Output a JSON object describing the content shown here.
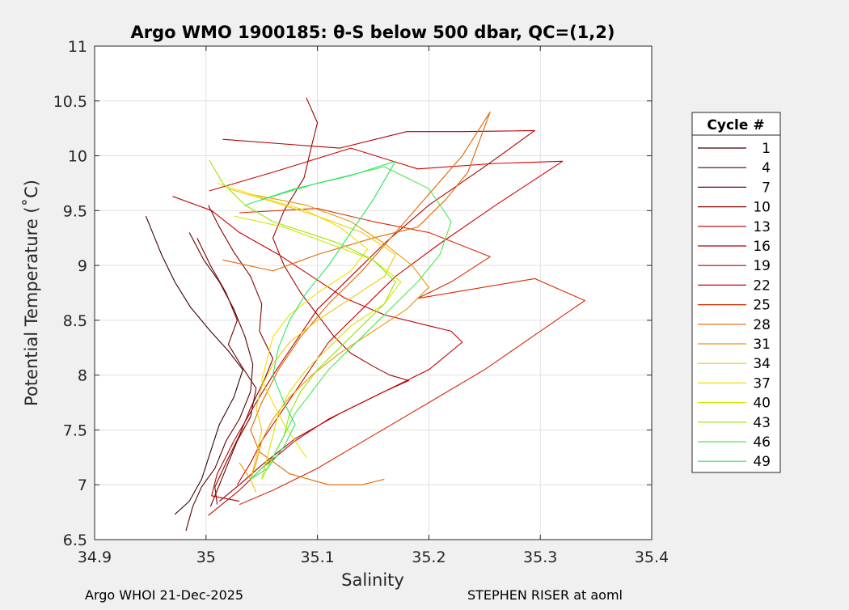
{
  "chart_data": {
    "type": "line",
    "title": "Argo WMO 1900185: θ-S below 500 dbar,  QC=(1,2)",
    "xlabel": "Salinity",
    "ylabel": "Potential Temperature (˚C)",
    "xlim": [
      34.9,
      35.4
    ],
    "ylim": [
      6.5,
      11
    ],
    "xticks": [
      34.9,
      35,
      35.1,
      35.2,
      35.3,
      35.4
    ],
    "xtick_labels": [
      "34.9",
      "35",
      "35.1",
      "35.2",
      "35.3",
      "35.4"
    ],
    "yticks": [
      6.5,
      7,
      7.5,
      8,
      8.5,
      9,
      9.5,
      10,
      10.5,
      11
    ],
    "ytick_labels": [
      "6.5",
      "7",
      "7.5",
      "8",
      "8.5",
      "9",
      "9.5",
      "10",
      "10.5",
      "11"
    ],
    "grid": true,
    "legend": {
      "title": "Cycle #",
      "position": "right"
    },
    "series": [
      {
        "name": "1",
        "color": "#3c0000",
        "points": [
          [
            34.946,
            9.45
          ],
          [
            34.96,
            9.1
          ],
          [
            34.972,
            8.85
          ],
          [
            34.986,
            8.62
          ],
          [
            35.004,
            8.4
          ],
          [
            35.02,
            8.22
          ],
          [
            35.033,
            8.05
          ],
          [
            35.025,
            7.8
          ],
          [
            35.012,
            7.55
          ],
          [
            35.004,
            7.3
          ],
          [
            34.996,
            7.05
          ],
          [
            34.985,
            6.85
          ],
          [
            34.972,
            6.73
          ]
        ]
      },
      {
        "name": "4",
        "color": "#5a0000",
        "points": [
          [
            34.985,
            9.3
          ],
          [
            34.998,
            9.05
          ],
          [
            35.012,
            8.85
          ],
          [
            35.025,
            8.6
          ],
          [
            35.035,
            8.35
          ],
          [
            35.042,
            8.1
          ],
          [
            35.04,
            7.85
          ],
          [
            35.03,
            7.6
          ],
          [
            35.018,
            7.4
          ],
          [
            35.008,
            7.15
          ],
          [
            34.996,
            6.98
          ],
          [
            34.988,
            6.8
          ],
          [
            34.982,
            6.58
          ]
        ]
      },
      {
        "name": "7",
        "color": "#720000",
        "points": [
          [
            34.992,
            9.25
          ],
          [
            35.004,
            9.0
          ],
          [
            35.018,
            8.75
          ],
          [
            35.028,
            8.5
          ],
          [
            35.02,
            8.28
          ],
          [
            35.032,
            8.08
          ],
          [
            35.045,
            7.88
          ],
          [
            35.04,
            7.62
          ],
          [
            35.028,
            7.4
          ],
          [
            35.018,
            7.15
          ],
          [
            35.01,
            6.95
          ],
          [
            35.004,
            6.8
          ]
        ]
      },
      {
        "name": "10",
        "color": "#8a0000",
        "points": [
          [
            35.002,
            9.55
          ],
          [
            35.012,
            9.35
          ],
          [
            35.025,
            9.12
          ],
          [
            35.04,
            8.9
          ],
          [
            35.05,
            8.65
          ],
          [
            35.048,
            8.4
          ],
          [
            35.06,
            8.15
          ],
          [
            35.052,
            7.95
          ],
          [
            35.04,
            7.7
          ],
          [
            35.03,
            7.45
          ],
          [
            35.018,
            7.2
          ],
          [
            35.008,
            6.98
          ],
          [
            35.01,
            6.82
          ]
        ]
      },
      {
        "name": "13",
        "color": "#a00000",
        "points": [
          [
            35.09,
            10.53
          ],
          [
            35.1,
            10.3
          ],
          [
            35.095,
            10.1
          ],
          [
            35.088,
            9.8
          ],
          [
            35.07,
            9.5
          ],
          [
            35.06,
            9.25
          ],
          [
            35.07,
            9.0
          ],
          [
            35.085,
            8.75
          ],
          [
            35.1,
            8.55
          ],
          [
            35.115,
            8.35
          ],
          [
            35.13,
            8.2
          ],
          [
            35.15,
            8.08
          ],
          [
            35.165,
            8.0
          ],
          [
            35.182,
            7.95
          ],
          [
            35.16,
            7.85
          ],
          [
            35.12,
            7.65
          ],
          [
            35.08,
            7.42
          ],
          [
            35.05,
            7.18
          ],
          [
            35.03,
            7.0
          ],
          [
            35.012,
            6.85
          ]
        ]
      },
      {
        "name": "16",
        "color": "#b40000",
        "points": [
          [
            35.015,
            10.15
          ],
          [
            35.08,
            10.1
          ],
          [
            35.12,
            10.07
          ],
          [
            35.18,
            10.22
          ],
          [
            35.23,
            10.22
          ],
          [
            35.295,
            10.23
          ],
          [
            35.25,
            9.9
          ],
          [
            35.2,
            9.55
          ],
          [
            35.16,
            9.2
          ],
          [
            35.13,
            8.9
          ],
          [
            35.1,
            8.6
          ],
          [
            35.08,
            8.3
          ],
          [
            35.06,
            8.0
          ],
          [
            35.045,
            7.75
          ],
          [
            35.025,
            7.4
          ],
          [
            35.01,
            7.1
          ],
          [
            35.005,
            6.9
          ],
          [
            35.03,
            6.85
          ]
        ]
      },
      {
        "name": "19",
        "color": "#c40000",
        "points": [
          [
            34.97,
            9.63
          ],
          [
            35.005,
            9.5
          ],
          [
            35.03,
            9.3
          ],
          [
            35.065,
            9.1
          ],
          [
            35.095,
            8.9
          ],
          [
            35.125,
            8.7
          ],
          [
            35.16,
            8.55
          ],
          [
            35.2,
            8.45
          ],
          [
            35.22,
            8.4
          ],
          [
            35.23,
            8.3
          ],
          [
            35.2,
            8.05
          ],
          [
            35.15,
            7.8
          ],
          [
            35.11,
            7.6
          ],
          [
            35.08,
            7.4
          ],
          [
            35.05,
            7.15
          ],
          [
            35.03,
            6.95
          ],
          [
            35.002,
            6.72
          ]
        ]
      },
      {
        "name": "22",
        "color": "#d20000",
        "points": [
          [
            35.003,
            9.68
          ],
          [
            35.06,
            9.85
          ],
          [
            35.13,
            10.07
          ],
          [
            35.19,
            9.88
          ],
          [
            35.26,
            9.93
          ],
          [
            35.32,
            9.95
          ],
          [
            35.26,
            9.55
          ],
          [
            35.21,
            9.2
          ],
          [
            35.17,
            8.9
          ],
          [
            35.14,
            8.6
          ],
          [
            35.11,
            8.3
          ],
          [
            35.09,
            8.0
          ],
          [
            35.07,
            7.7
          ],
          [
            35.05,
            7.4
          ],
          [
            35.04,
            7.2
          ],
          [
            35.028,
            7.0
          ]
        ]
      },
      {
        "name": "25",
        "color": "#dc2800",
        "points": [
          [
            35.03,
            9.48
          ],
          [
            35.1,
            9.52
          ],
          [
            35.15,
            9.4
          ],
          [
            35.2,
            9.3
          ],
          [
            35.255,
            9.08
          ],
          [
            35.22,
            8.85
          ],
          [
            35.19,
            8.7
          ],
          [
            35.295,
            8.88
          ],
          [
            35.34,
            8.68
          ],
          [
            35.3,
            8.4
          ],
          [
            35.25,
            8.05
          ],
          [
            35.2,
            7.75
          ],
          [
            35.15,
            7.45
          ],
          [
            35.1,
            7.15
          ],
          [
            35.06,
            6.95
          ],
          [
            35.03,
            6.82
          ]
        ]
      },
      {
        "name": "28",
        "color": "#e46400",
        "points": [
          [
            35.015,
            9.05
          ],
          [
            35.06,
            8.95
          ],
          [
            35.1,
            9.1
          ],
          [
            35.15,
            9.25
          ],
          [
            35.19,
            9.35
          ],
          [
            35.215,
            9.6
          ],
          [
            35.235,
            9.85
          ],
          [
            35.255,
            10.4
          ],
          [
            35.23,
            10.0
          ],
          [
            35.2,
            9.65
          ],
          [
            35.17,
            9.3
          ],
          [
            35.14,
            8.95
          ],
          [
            35.11,
            8.65
          ],
          [
            35.085,
            8.35
          ],
          [
            35.065,
            8.05
          ],
          [
            35.05,
            7.75
          ],
          [
            35.04,
            7.5
          ],
          [
            35.048,
            7.3
          ],
          [
            35.075,
            7.1
          ],
          [
            35.11,
            7.0
          ],
          [
            35.14,
            7.0
          ],
          [
            35.16,
            7.05
          ]
        ]
      },
      {
        "name": "31",
        "color": "#ea9600",
        "points": [
          [
            35.04,
            9.65
          ],
          [
            35.09,
            9.55
          ],
          [
            35.13,
            9.4
          ],
          [
            35.16,
            9.2
          ],
          [
            35.185,
            9.0
          ],
          [
            35.2,
            8.8
          ],
          [
            35.18,
            8.6
          ],
          [
            35.15,
            8.4
          ],
          [
            35.12,
            8.2
          ],
          [
            35.095,
            8.0
          ],
          [
            35.075,
            7.8
          ],
          [
            35.06,
            7.6
          ],
          [
            35.05,
            7.4
          ],
          [
            35.045,
            7.2
          ],
          [
            35.04,
            7.05
          ],
          [
            35.03,
            7.2
          ]
        ]
      },
      {
        "name": "34",
        "color": "#f0c800",
        "points": [
          [
            35.02,
            9.7
          ],
          [
            35.06,
            9.58
          ],
          [
            35.1,
            9.45
          ],
          [
            35.14,
            9.3
          ],
          [
            35.17,
            9.1
          ],
          [
            35.16,
            8.9
          ],
          [
            35.13,
            8.7
          ],
          [
            35.1,
            8.5
          ],
          [
            35.075,
            8.3
          ],
          [
            35.06,
            8.1
          ],
          [
            35.05,
            7.9
          ],
          [
            35.045,
            7.7
          ],
          [
            35.05,
            7.5
          ],
          [
            35.045,
            7.25
          ],
          [
            35.04,
            7.05
          ],
          [
            35.045,
            6.93
          ]
        ]
      },
      {
        "name": "37",
        "color": "#f0e000",
        "points": [
          [
            35.01,
            9.75
          ],
          [
            35.05,
            9.62
          ],
          [
            35.09,
            9.5
          ],
          [
            35.12,
            9.35
          ],
          [
            35.145,
            9.15
          ],
          [
            35.13,
            8.95
          ],
          [
            35.1,
            8.75
          ],
          [
            35.075,
            8.55
          ],
          [
            35.06,
            8.35
          ],
          [
            35.055,
            8.15
          ],
          [
            35.05,
            7.95
          ],
          [
            35.06,
            7.75
          ],
          [
            35.07,
            7.55
          ],
          [
            35.08,
            7.4
          ],
          [
            35.09,
            7.25
          ]
        ]
      },
      {
        "name": "40",
        "color": "#d2e600",
        "points": [
          [
            35.025,
            9.45
          ],
          [
            35.07,
            9.35
          ],
          [
            35.11,
            9.2
          ],
          [
            35.15,
            9.05
          ],
          [
            35.175,
            8.85
          ],
          [
            35.16,
            8.65
          ],
          [
            35.13,
            8.45
          ],
          [
            35.11,
            8.25
          ],
          [
            35.09,
            8.05
          ],
          [
            35.075,
            7.85
          ],
          [
            35.065,
            7.65
          ],
          [
            35.06,
            7.45
          ],
          [
            35.055,
            7.25
          ],
          [
            35.05,
            7.05
          ]
        ]
      },
      {
        "name": "43",
        "color": "#96e600",
        "points": [
          [
            35.003,
            9.96
          ],
          [
            35.015,
            9.75
          ],
          [
            35.035,
            9.55
          ],
          [
            35.06,
            9.4
          ],
          [
            35.09,
            9.3
          ],
          [
            35.12,
            9.2
          ],
          [
            35.15,
            9.05
          ],
          [
            35.17,
            8.85
          ],
          [
            35.16,
            8.65
          ],
          [
            35.14,
            8.45
          ],
          [
            35.12,
            8.25
          ],
          [
            35.1,
            8.05
          ],
          [
            35.085,
            7.85
          ],
          [
            35.075,
            7.65
          ],
          [
            35.07,
            7.45
          ],
          [
            35.06,
            7.25
          ],
          [
            35.05,
            7.05
          ]
        ]
      },
      {
        "name": "46",
        "color": "#50e650",
        "points": [
          [
            35.05,
            9.6
          ],
          [
            35.1,
            9.75
          ],
          [
            35.16,
            9.9
          ],
          [
            35.2,
            9.7
          ],
          [
            35.22,
            9.4
          ],
          [
            35.21,
            9.1
          ],
          [
            35.19,
            8.85
          ],
          [
            35.17,
            8.65
          ],
          [
            35.15,
            8.45
          ],
          [
            35.13,
            8.25
          ],
          [
            35.11,
            8.05
          ],
          [
            35.095,
            7.85
          ],
          [
            35.08,
            7.65
          ],
          [
            35.07,
            7.45
          ],
          [
            35.06,
            7.25
          ],
          [
            35.04,
            7.05
          ]
        ]
      },
      {
        "name": "49",
        "color": "#28e664",
        "points": [
          [
            35.035,
            9.55
          ],
          [
            35.08,
            9.7
          ],
          [
            35.13,
            9.82
          ],
          [
            35.17,
            9.95
          ],
          [
            35.15,
            9.6
          ],
          [
            35.13,
            9.3
          ],
          [
            35.11,
            9.0
          ],
          [
            35.09,
            8.75
          ],
          [
            35.075,
            8.5
          ],
          [
            35.065,
            8.25
          ],
          [
            35.06,
            8.0
          ],
          [
            35.07,
            7.75
          ],
          [
            35.08,
            7.55
          ],
          [
            35.07,
            7.35
          ],
          [
            35.055,
            7.15
          ],
          [
            35.04,
            7.05
          ]
        ]
      }
    ]
  },
  "footer": {
    "left": "Argo WHOI 21-Dec-2025",
    "right": "STEPHEN RISER at aoml"
  }
}
